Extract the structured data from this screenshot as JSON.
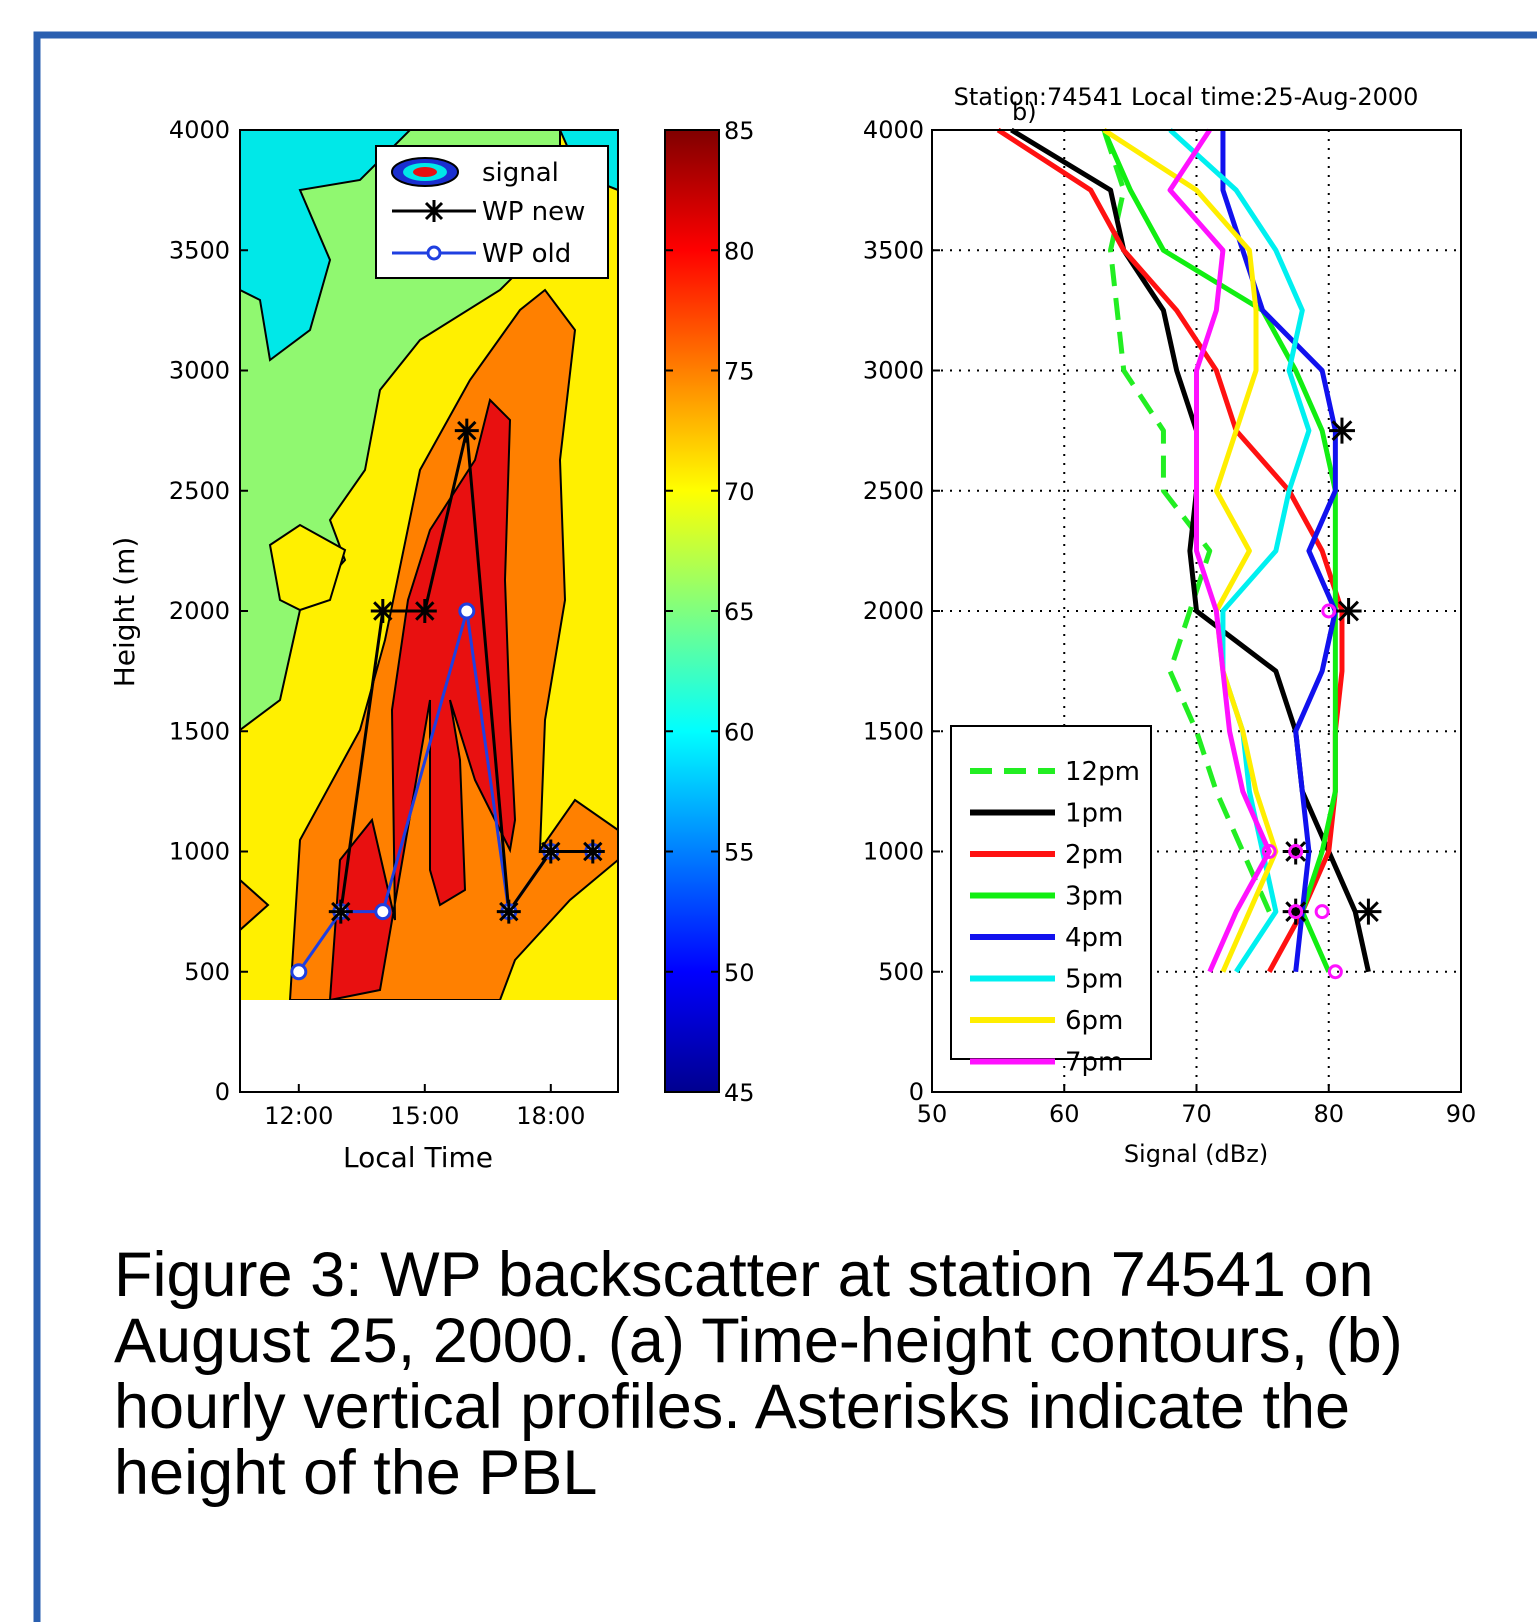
{
  "caption": "Figure 3: WP backscatter at station 74541 on August 25, 2000. (a) Time-height contours, (b) hourly vertical profiles. Asterisks indicate the height of the PBL",
  "colors": {
    "frame": "#2a5fb0",
    "wp_new": "#000000",
    "wp_old": "#1f3fe0"
  },
  "chart_data": [
    {
      "id": "a",
      "type": "heatmap",
      "xlabel": "Local Time",
      "ylabel": "Height (m)",
      "xticks": [
        "12:00",
        "15:00",
        "18:00"
      ],
      "xtick_values": [
        12,
        15,
        18
      ],
      "yticks": [
        "0",
        "500",
        "1000",
        "1500",
        "2000",
        "2500",
        "3000",
        "3500",
        "4000"
      ],
      "xlim": [
        10.6,
        19.6
      ],
      "ylim": [
        0,
        4000
      ],
      "colorbar": {
        "ticks": [
          "45",
          "50",
          "55",
          "60",
          "65",
          "70",
          "75",
          "80",
          "85"
        ],
        "range": [
          45,
          85
        ],
        "colormap": "jet"
      },
      "legend": {
        "position": "top-right",
        "entries": [
          "signal",
          "WP new",
          "WP old"
        ]
      },
      "series": [
        {
          "name": "WP new",
          "marker": "asterisk",
          "color": "#000000",
          "x": [
            13,
            14,
            15,
            16,
            17,
            18,
            19
          ],
          "y": [
            750,
            2000,
            2000,
            2750,
            750,
            1000,
            1000
          ]
        },
        {
          "name": "WP old",
          "marker": "circle",
          "color": "#1f3fe0",
          "x": [
            12,
            13,
            14,
            16,
            17,
            18,
            19
          ],
          "y": [
            500,
            750,
            750,
            2000,
            750,
            1000,
            1000
          ]
        }
      ],
      "contour_bands": [
        {
          "level": 60,
          "color": "#00e8e8"
        },
        {
          "level": 65,
          "color": "#90f870"
        },
        {
          "level": 70,
          "color": "#fff000"
        },
        {
          "level": 75,
          "color": "#ff8000"
        },
        {
          "level": 80,
          "color": "#e81010"
        }
      ]
    },
    {
      "id": "b",
      "type": "line",
      "title": "Station:74541 Local time:25-Aug-2000",
      "panel_label": "b)",
      "xlabel": "Signal (dBz)",
      "ylabel": "",
      "xticks": [
        "50",
        "60",
        "70",
        "80",
        "90"
      ],
      "yticks": [
        "0",
        "500",
        "1000",
        "1500",
        "2000",
        "2500",
        "3000",
        "3500",
        "4000"
      ],
      "xlim": [
        50,
        90
      ],
      "ylim": [
        0,
        4000
      ],
      "grid": true,
      "legend": {
        "position": "bottom-left"
      },
      "heights": [
        500,
        750,
        1000,
        1250,
        1500,
        1750,
        2000,
        2250,
        2500,
        2750,
        3000,
        3250,
        3500,
        3750,
        4000
      ],
      "series": [
        {
          "name": "12pm",
          "color": "#22ee22",
          "dash": true,
          "values": [
            null,
            75.5,
            73.5,
            71.5,
            70,
            68,
            69.5,
            71,
            67.5,
            67.5,
            64.5,
            64,
            63.5,
            64.5,
            63
          ]
        },
        {
          "name": "1pm",
          "color": "#000000",
          "values": [
            83,
            82,
            80,
            78,
            77.5,
            76,
            70,
            69.5,
            70,
            70,
            68.5,
            67.5,
            64.5,
            63.5,
            56
          ]
        },
        {
          "name": "2pm",
          "color": "#ff1111",
          "values": [
            75.5,
            78,
            80,
            80.5,
            80.5,
            81,
            81,
            79.5,
            77,
            73,
            71.5,
            68.5,
            64.5,
            62,
            55
          ]
        },
        {
          "name": "3pm",
          "color": "#11ee11",
          "values": [
            80,
            78,
            79.5,
            80.5,
            80.5,
            80.5,
            80.5,
            80.5,
            80.5,
            79.5,
            77.5,
            75,
            67.5,
            65,
            63
          ]
        },
        {
          "name": "4pm",
          "color": "#1111ee",
          "values": [
            77.5,
            78,
            78.5,
            78,
            77.5,
            79.5,
            80.5,
            78.5,
            80.5,
            80.5,
            79.5,
            75,
            73.5,
            72,
            72
          ]
        },
        {
          "name": "5pm",
          "color": "#00f0f0",
          "values": [
            73,
            76,
            75,
            74,
            73.5,
            72,
            72,
            76,
            77,
            78.5,
            77,
            78,
            76,
            73,
            68
          ]
        },
        {
          "name": "6pm",
          "color": "#ffee00",
          "values": [
            72,
            74,
            76,
            74.5,
            73.5,
            72,
            71.5,
            74,
            71.5,
            73,
            74.5,
            74.5,
            74,
            70,
            63
          ]
        },
        {
          "name": "7pm",
          "color": "#ff11ff",
          "values": [
            71,
            73,
            75.5,
            73.5,
            72.5,
            72,
            71.5,
            70,
            70,
            70,
            70,
            71.5,
            72,
            68,
            71
          ]
        }
      ],
      "markers": {
        "asterisk": [
          [
            81,
            2750
          ],
          [
            81.5,
            2000
          ],
          [
            77.5,
            1000
          ],
          [
            83,
            750
          ],
          [
            77.5,
            750
          ]
        ],
        "magenta_circle": [
          [
            80,
            2000
          ],
          [
            77.5,
            1000
          ],
          [
            75.5,
            1000
          ],
          [
            77.5,
            750
          ],
          [
            79.5,
            750
          ],
          [
            80.5,
            500
          ]
        ]
      }
    }
  ]
}
